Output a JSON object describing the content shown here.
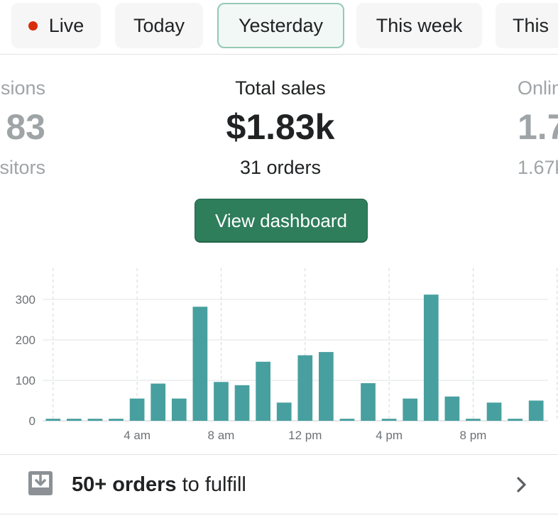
{
  "tabs": [
    {
      "label": "Live",
      "live": true
    },
    {
      "label": "Today"
    },
    {
      "label": "Yesterday",
      "active": true
    },
    {
      "label": "This week"
    },
    {
      "label": "This"
    }
  ],
  "metrics": {
    "left": {
      "title": "sions",
      "value": "83",
      "sub": "sitors"
    },
    "center": {
      "title": "Total sales",
      "value": "$1.83k",
      "sub": "31 orders"
    },
    "right": {
      "title": "Onlin",
      "value": "1.7",
      "sub": "1.67k"
    }
  },
  "dashboard_button": {
    "label": "View dashboard"
  },
  "chart_data": {
    "type": "bar",
    "categories": [
      "12 am",
      "1 am",
      "2 am",
      "3 am",
      "4 am",
      "5 am",
      "6 am",
      "7 am",
      "8 am",
      "9 am",
      "10 am",
      "11 am",
      "12 pm",
      "1 pm",
      "2 pm",
      "3 pm",
      "4 pm",
      "5 pm",
      "6 pm",
      "7 pm",
      "8 pm",
      "9 pm",
      "10 pm",
      "11 pm"
    ],
    "values": [
      5,
      5,
      5,
      5,
      55,
      92,
      55,
      282,
      96,
      88,
      146,
      45,
      162,
      170,
      5,
      93,
      5,
      55,
      312,
      60,
      5,
      45,
      5,
      50
    ],
    "x_tick_labels": [
      "4 am",
      "8 am",
      "12 pm",
      "4 pm",
      "8 pm"
    ],
    "y_tick_labels": [
      "0",
      "100",
      "200",
      "300"
    ],
    "ylim": [
      0,
      370
    ],
    "grid": true,
    "bar_color": "#47a09f"
  },
  "fulfill": {
    "count_label": "50+ orders",
    "rest_label": " to fulfill"
  },
  "colors": {
    "accent": "#2e7d5b",
    "live": "#d82c0d"
  }
}
